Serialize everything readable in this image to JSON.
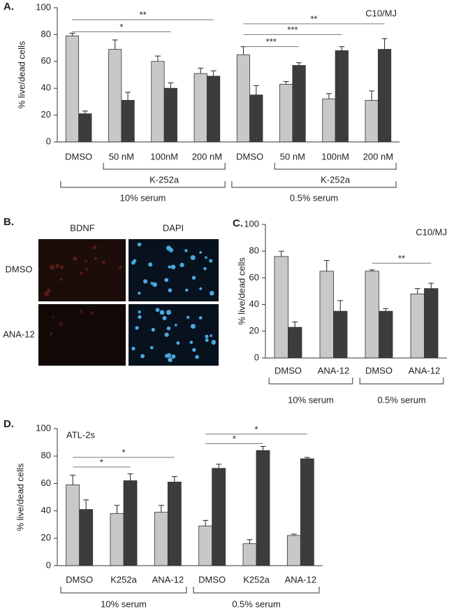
{
  "chart_data": [
    {
      "type": "bar",
      "label": "A.",
      "y_label": "% live/dead cells",
      "note": "C10/MJ",
      "categories": [
        "DMSO",
        "50 nM",
        "100nM",
        "200 nM",
        "DMSO",
        "50 nM",
        "100nM",
        "200 nM"
      ],
      "series": [
        {
          "color": "#c8c8c8",
          "values": [
            79,
            69,
            60,
            51,
            65,
            43,
            32,
            31
          ],
          "errors": [
            2,
            7,
            4,
            4,
            6,
            2,
            4,
            7
          ]
        },
        {
          "color": "#3c3c3c",
          "values": [
            21,
            31,
            40,
            49,
            35,
            57,
            68,
            69
          ],
          "errors": [
            2,
            6,
            4,
            4,
            7,
            2,
            3,
            8
          ]
        }
      ],
      "ylim": [
        0,
        100
      ],
      "yticks": [
        0,
        20,
        40,
        60,
        80,
        100
      ],
      "significance": [
        {
          "label": "**",
          "start": 0,
          "end": 3,
          "y": 91
        },
        {
          "label": "*",
          "start": 0,
          "end": 2,
          "y": 82
        },
        {
          "label": "**",
          "start": 4,
          "end": 7,
          "y": 88
        },
        {
          "label": "***",
          "start": 4,
          "end": 6,
          "y": 80
        },
        {
          "label": "***",
          "start": 4,
          "end": 5,
          "y": 71
        }
      ],
      "subgroups": [
        {
          "label": "K-252a",
          "start": 1,
          "end": 3
        },
        {
          "label": "K-252a",
          "start": 5,
          "end": 7
        }
      ],
      "groups": [
        {
          "label": "10% serum",
          "start": 0,
          "end": 3
        },
        {
          "label": "0.5% serum",
          "start": 4,
          "end": 7
        }
      ]
    },
    {
      "type": "bar",
      "label": "C.",
      "y_label": "% live/dead cells",
      "note": "C10/MJ",
      "categories": [
        "DMSO",
        "ANA-12",
        "DMSO",
        "ANA-12"
      ],
      "series": [
        {
          "color": "#c8c8c8",
          "values": [
            76,
            65,
            65,
            48
          ],
          "errors": [
            4,
            8,
            1,
            4
          ]
        },
        {
          "color": "#3c3c3c",
          "values": [
            23,
            35,
            35,
            52
          ],
          "errors": [
            4,
            8,
            2,
            4
          ]
        }
      ],
      "ylim": [
        0,
        100
      ],
      "yticks": [
        0,
        20,
        40,
        60,
        80,
        100
      ],
      "significance": [
        {
          "label": "**",
          "start": 2,
          "end": 3,
          "y": 71
        }
      ],
      "groups": [
        {
          "label": "10% serum",
          "start": 0,
          "end": 1
        },
        {
          "label": "0.5% serum",
          "start": 2,
          "end": 3
        }
      ]
    },
    {
      "type": "bar",
      "label": "D.",
      "y_label": "% live/dead cells",
      "note": "ATL-2s",
      "categories": [
        "DMSO",
        "K252a",
        "ANA-12",
        "DMSO",
        "K252a",
        "ANA-12"
      ],
      "series": [
        {
          "color": "#c8c8c8",
          "values": [
            59,
            38,
            39,
            29,
            16,
            22
          ],
          "errors": [
            7,
            6,
            5,
            4,
            3,
            1
          ]
        },
        {
          "color": "#3c3c3c",
          "values": [
            41,
            62,
            61,
            71,
            84,
            78
          ],
          "errors": [
            7,
            5,
            4,
            3,
            3,
            1
          ]
        }
      ],
      "ylim": [
        0,
        100
      ],
      "yticks": [
        0,
        20,
        40,
        60,
        80,
        100
      ],
      "significance": [
        {
          "label": "*",
          "start": 0,
          "end": 1,
          "y": 72
        },
        {
          "label": "*",
          "start": 0,
          "end": 2,
          "y": 79
        },
        {
          "label": "*",
          "start": 3,
          "end": 4,
          "y": 89
        },
        {
          "label": "*",
          "start": 3,
          "end": 5,
          "y": 96
        }
      ],
      "groups": [
        {
          "label": "10% serum",
          "start": 0,
          "end": 2
        },
        {
          "label": "0.5% serum",
          "start": 3,
          "end": 5
        }
      ]
    }
  ],
  "panel_b": {
    "label": "B.",
    "columns": [
      "BDNF",
      "DAPI"
    ],
    "rows": [
      "DMSO",
      "ANA-12"
    ]
  }
}
